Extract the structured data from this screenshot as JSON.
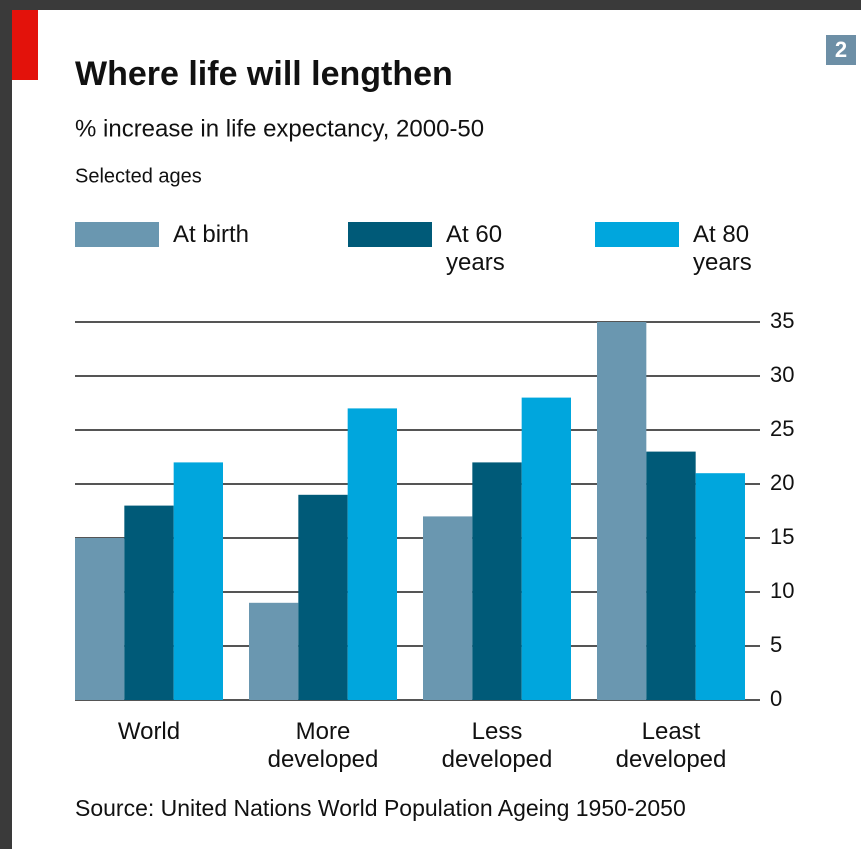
{
  "chart_data": {
    "type": "bar",
    "badge": "2",
    "title": "Where life will lengthen",
    "subtitle": "% increase in life expectancy, 2000-50",
    "note": "Selected ages",
    "source": "Source: United Nations World Population Ageing 1950-2050",
    "categories": [
      "World",
      "More developed",
      "Less developed",
      "Least developed"
    ],
    "series": [
      {
        "name": "At birth",
        "color": "#6a97b0",
        "values": [
          15,
          9,
          17,
          35
        ]
      },
      {
        "name": "At 60 years",
        "color": "#005a78",
        "values": [
          18,
          19,
          22,
          23
        ]
      },
      {
        "name": "At 80 years",
        "color": "#00a6dd",
        "values": [
          22,
          27,
          28,
          21
        ]
      }
    ],
    "ylim": [
      0,
      35
    ],
    "yticks": [
      0,
      5,
      10,
      15,
      20,
      25,
      30,
      35
    ],
    "grid": true,
    "axis_side": "right"
  }
}
